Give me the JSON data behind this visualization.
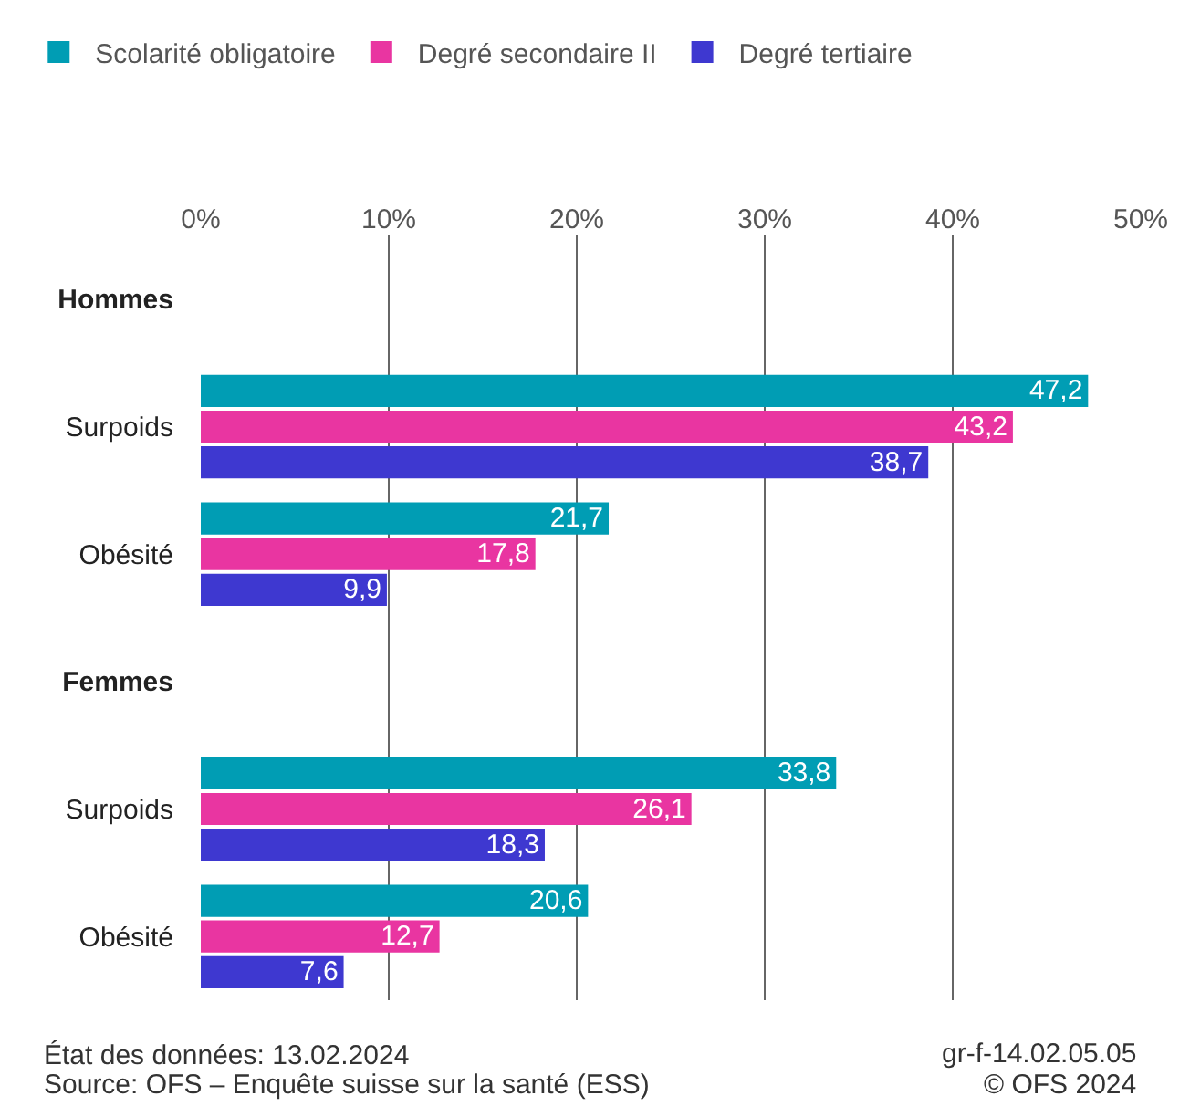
{
  "chart_data": {
    "type": "bar",
    "orientation": "horizontal",
    "categories": [
      "Hommes",
      "Surpoids",
      "Obésité",
      "Femmes",
      "Surpoids",
      "Obésité"
    ],
    "series": [
      {
        "name": "Scolarité obligatoire",
        "color": "#009db4",
        "values": [
          null,
          47.2,
          21.7,
          null,
          33.8,
          20.6
        ],
        "value_labels": [
          null,
          "47,2",
          "21,7",
          null,
          "33,8",
          "20,6"
        ]
      },
      {
        "name": "Degré secondaire II",
        "color": "#e935a1",
        "values": [
          null,
          43.2,
          17.8,
          null,
          26.1,
          12.7
        ],
        "value_labels": [
          null,
          "43,2",
          "17,8",
          null,
          "26,1",
          "12,7"
        ]
      },
      {
        "name": "Degré tertiaire",
        "color": "#3e38d0",
        "values": [
          null,
          38.7,
          9.9,
          null,
          18.3,
          7.6
        ],
        "value_labels": [
          null,
          "38,7",
          "9,9",
          null,
          "18,3",
          "7,6"
        ]
      }
    ],
    "xlim": [
      0,
      50
    ],
    "xticks": [
      {
        "value": 0,
        "label": "0%"
      },
      {
        "value": 10,
        "label": "10%"
      },
      {
        "value": 20,
        "label": "20%"
      },
      {
        "value": 30,
        "label": "30%"
      },
      {
        "value": 40,
        "label": "40%"
      },
      {
        "value": 50,
        "label": "50%"
      }
    ],
    "grid": "x",
    "legend": "top left",
    "annotations": [
      "État des données: 13.02.2024",
      "gr-f-14.02.05.05",
      "Source: OFS – Enquête suisse sur la santé (ESS)",
      "© OFS 2024"
    ]
  }
}
